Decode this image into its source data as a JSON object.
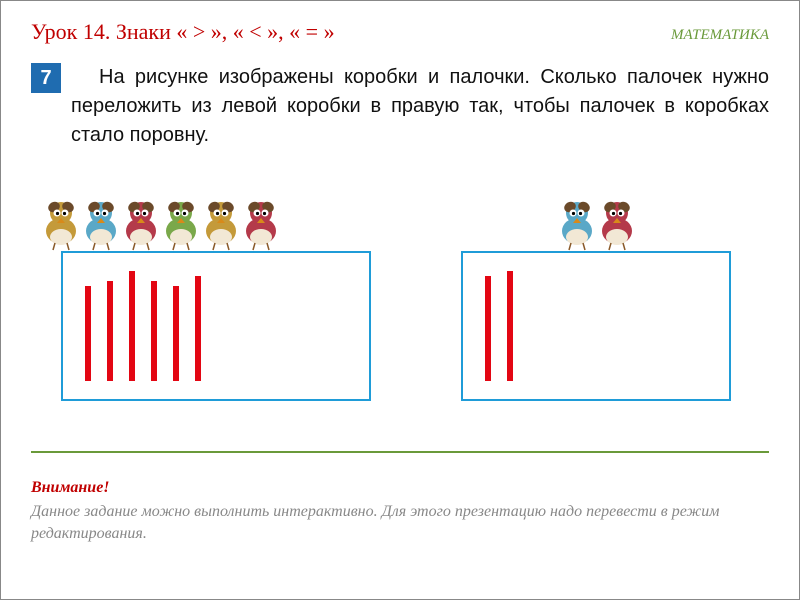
{
  "header": {
    "lesson_title": "Урок 14. Знаки «  >  », «  <   », «  =  »",
    "subject": "МАТЕМАТИКА"
  },
  "task": {
    "number": "7",
    "text": "На рисунке изображены коробки и палочки. Сколько палочек нужно переложить из левой коробки в правую так, чтобы палочек в коробках стало поровну."
  },
  "boxes": {
    "border_color": "#1f9cd8",
    "stick_color": "#e30613",
    "left": {
      "stick_count": 6,
      "stick_heights": [
        95,
        100,
        110,
        100,
        95,
        105
      ],
      "bird_colors": [
        "#c49a3a",
        "#5aa8c7",
        "#b43a4a",
        "#7aa84a",
        "#c49a3a",
        "#b43a4a"
      ]
    },
    "right": {
      "stick_count": 2,
      "stick_heights": [
        105,
        110
      ],
      "bird_colors": [
        "#5aa8c7",
        "#b43a4a"
      ]
    }
  },
  "attention": {
    "title": "Внимание!",
    "body": "Данное задание можно выполнить интерактивно. Для этого презентацию надо перевести в режим редактирования."
  },
  "colors": {
    "title_color": "#c00000",
    "subject_color": "#6a9a3a",
    "task_number_bg": "#1f6cb0",
    "divider_color": "#6a9a3a",
    "attention_title_color": "#c00000",
    "attention_body_color": "#888888"
  }
}
